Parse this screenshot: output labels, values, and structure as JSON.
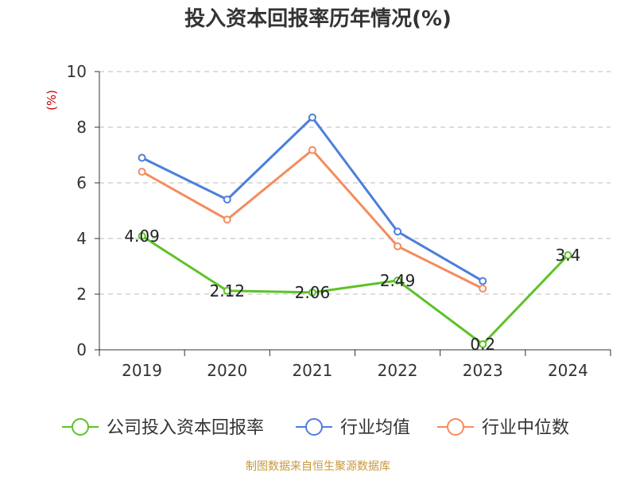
{
  "colors": {
    "company": "#5ec228",
    "industry_avg": "#4c7fdb",
    "industry_median": "#f58c5d",
    "ylabel": "#cc0000",
    "axis": "#333333",
    "grid": "#bbbbbb",
    "source": "#c8983e"
  },
  "chart_data": {
    "type": "line",
    "title": "投入资本回报率历年情况(%)",
    "ylabel": "(%)",
    "xlabel": "",
    "x": [
      "2019",
      "2020",
      "2021",
      "2022",
      "2023",
      "2024"
    ],
    "yticks": [
      "0",
      "2",
      "4",
      "6",
      "8",
      "10"
    ],
    "ylim": [
      0,
      10
    ],
    "grid": true,
    "legend_position": "bottom",
    "series": [
      {
        "name": "公司投入资本回报率",
        "color_key": "company",
        "values": [
          4.09,
          2.12,
          2.06,
          2.49,
          0.2,
          3.4
        ],
        "labels": [
          "4.09",
          "2.12",
          "2.06",
          "2.49",
          "0.2",
          "3.4"
        ]
      },
      {
        "name": "行业均值",
        "color_key": "industry_avg",
        "values": [
          6.9,
          5.4,
          8.35,
          4.25,
          2.47,
          null
        ]
      },
      {
        "name": "行业中位数",
        "color_key": "industry_median",
        "values": [
          6.4,
          4.68,
          7.18,
          3.72,
          2.2,
          null
        ]
      }
    ]
  },
  "source_note": "制图数据来自恒生聚源数据库"
}
